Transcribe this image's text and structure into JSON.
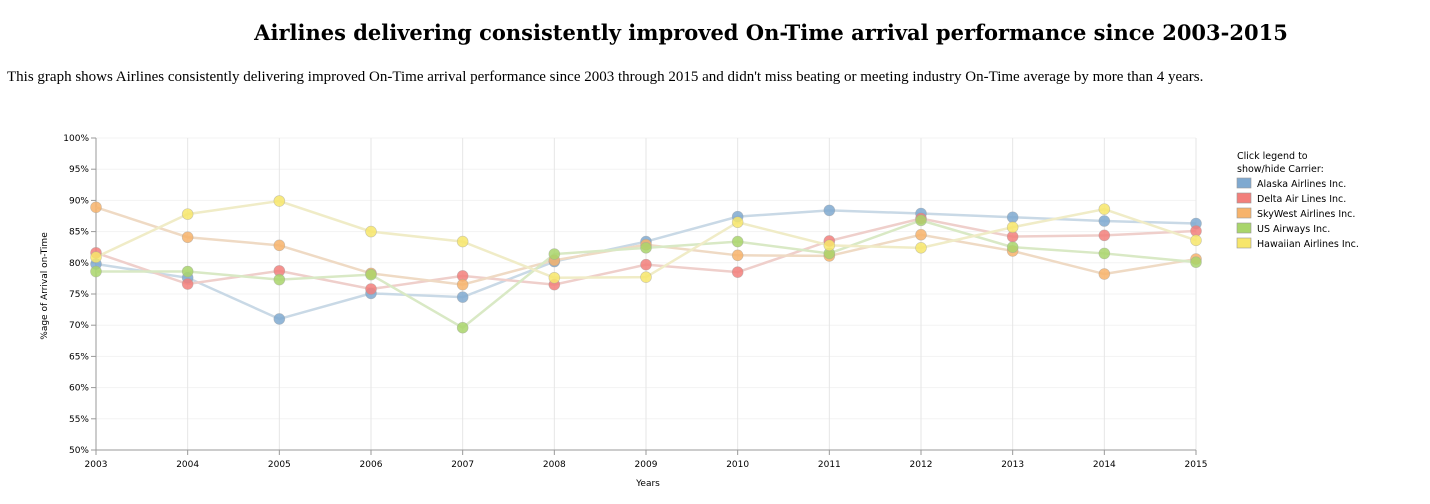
{
  "header": {
    "title": "Airlines delivering consistently improved On-Time arrival performance since 2003-2015",
    "description": "This graph shows Airlines consistently delivering improved On-Time arrival performance since 2003 through 2015 and didn't miss beating or meeting industry On-Time average by more than 4 years."
  },
  "chart_data": {
    "type": "line",
    "xlabel": "Years",
    "ylabel": "%age of Arrival on-Time",
    "x": [
      2003,
      2004,
      2005,
      2006,
      2007,
      2008,
      2009,
      2010,
      2011,
      2012,
      2013,
      2014,
      2015
    ],
    "xlim": [
      2003,
      2015
    ],
    "ylim": [
      50,
      100
    ],
    "y_ticks": [
      "50%",
      "55%",
      "60%",
      "65%",
      "70%",
      "75%",
      "80%",
      "85%",
      "90%",
      "95%",
      "100%"
    ],
    "grid": true,
    "legend": {
      "title_line1": "Click legend to",
      "title_line2": "show/hide Carrier:",
      "placement": "right"
    },
    "series": [
      {
        "name": "Alaska Airlines Inc.",
        "color": "#7fa9d0",
        "line_color": "#c9d9e6",
        "values": [
          79.8,
          77.6,
          71.0,
          75.1,
          74.5,
          80.2,
          83.4,
          87.4,
          88.4,
          87.9,
          87.3,
          86.7,
          86.3
        ]
      },
      {
        "name": "Delta Air Lines Inc.",
        "color": "#f27f7b",
        "line_color": "#efcfcb",
        "values": [
          81.6,
          76.6,
          78.7,
          75.8,
          77.9,
          76.5,
          79.7,
          78.5,
          83.5,
          87.1,
          84.2,
          84.4,
          85.1
        ]
      },
      {
        "name": "SkyWest Airlines Inc.",
        "color": "#f7b36b",
        "line_color": "#efdac4",
        "values": [
          88.9,
          84.1,
          82.8,
          78.3,
          76.5,
          80.4,
          82.9,
          81.2,
          81.1,
          84.5,
          81.9,
          78.2,
          80.6
        ]
      },
      {
        "name": "US Airways Inc.",
        "color": "#a9d56b",
        "line_color": "#d9e9c5",
        "values": [
          78.6,
          78.6,
          77.3,
          78.1,
          69.6,
          81.4,
          82.4,
          83.4,
          81.5,
          86.8,
          82.5,
          81.5,
          80.1
        ]
      },
      {
        "name": "Hawaiian Airlines Inc.",
        "color": "#f7e66b",
        "line_color": "#f0ecc7",
        "values": [
          80.9,
          87.8,
          89.9,
          85.0,
          83.4,
          77.6,
          77.7,
          86.5,
          82.8,
          82.4,
          85.7,
          88.6,
          83.6
        ]
      }
    ]
  }
}
